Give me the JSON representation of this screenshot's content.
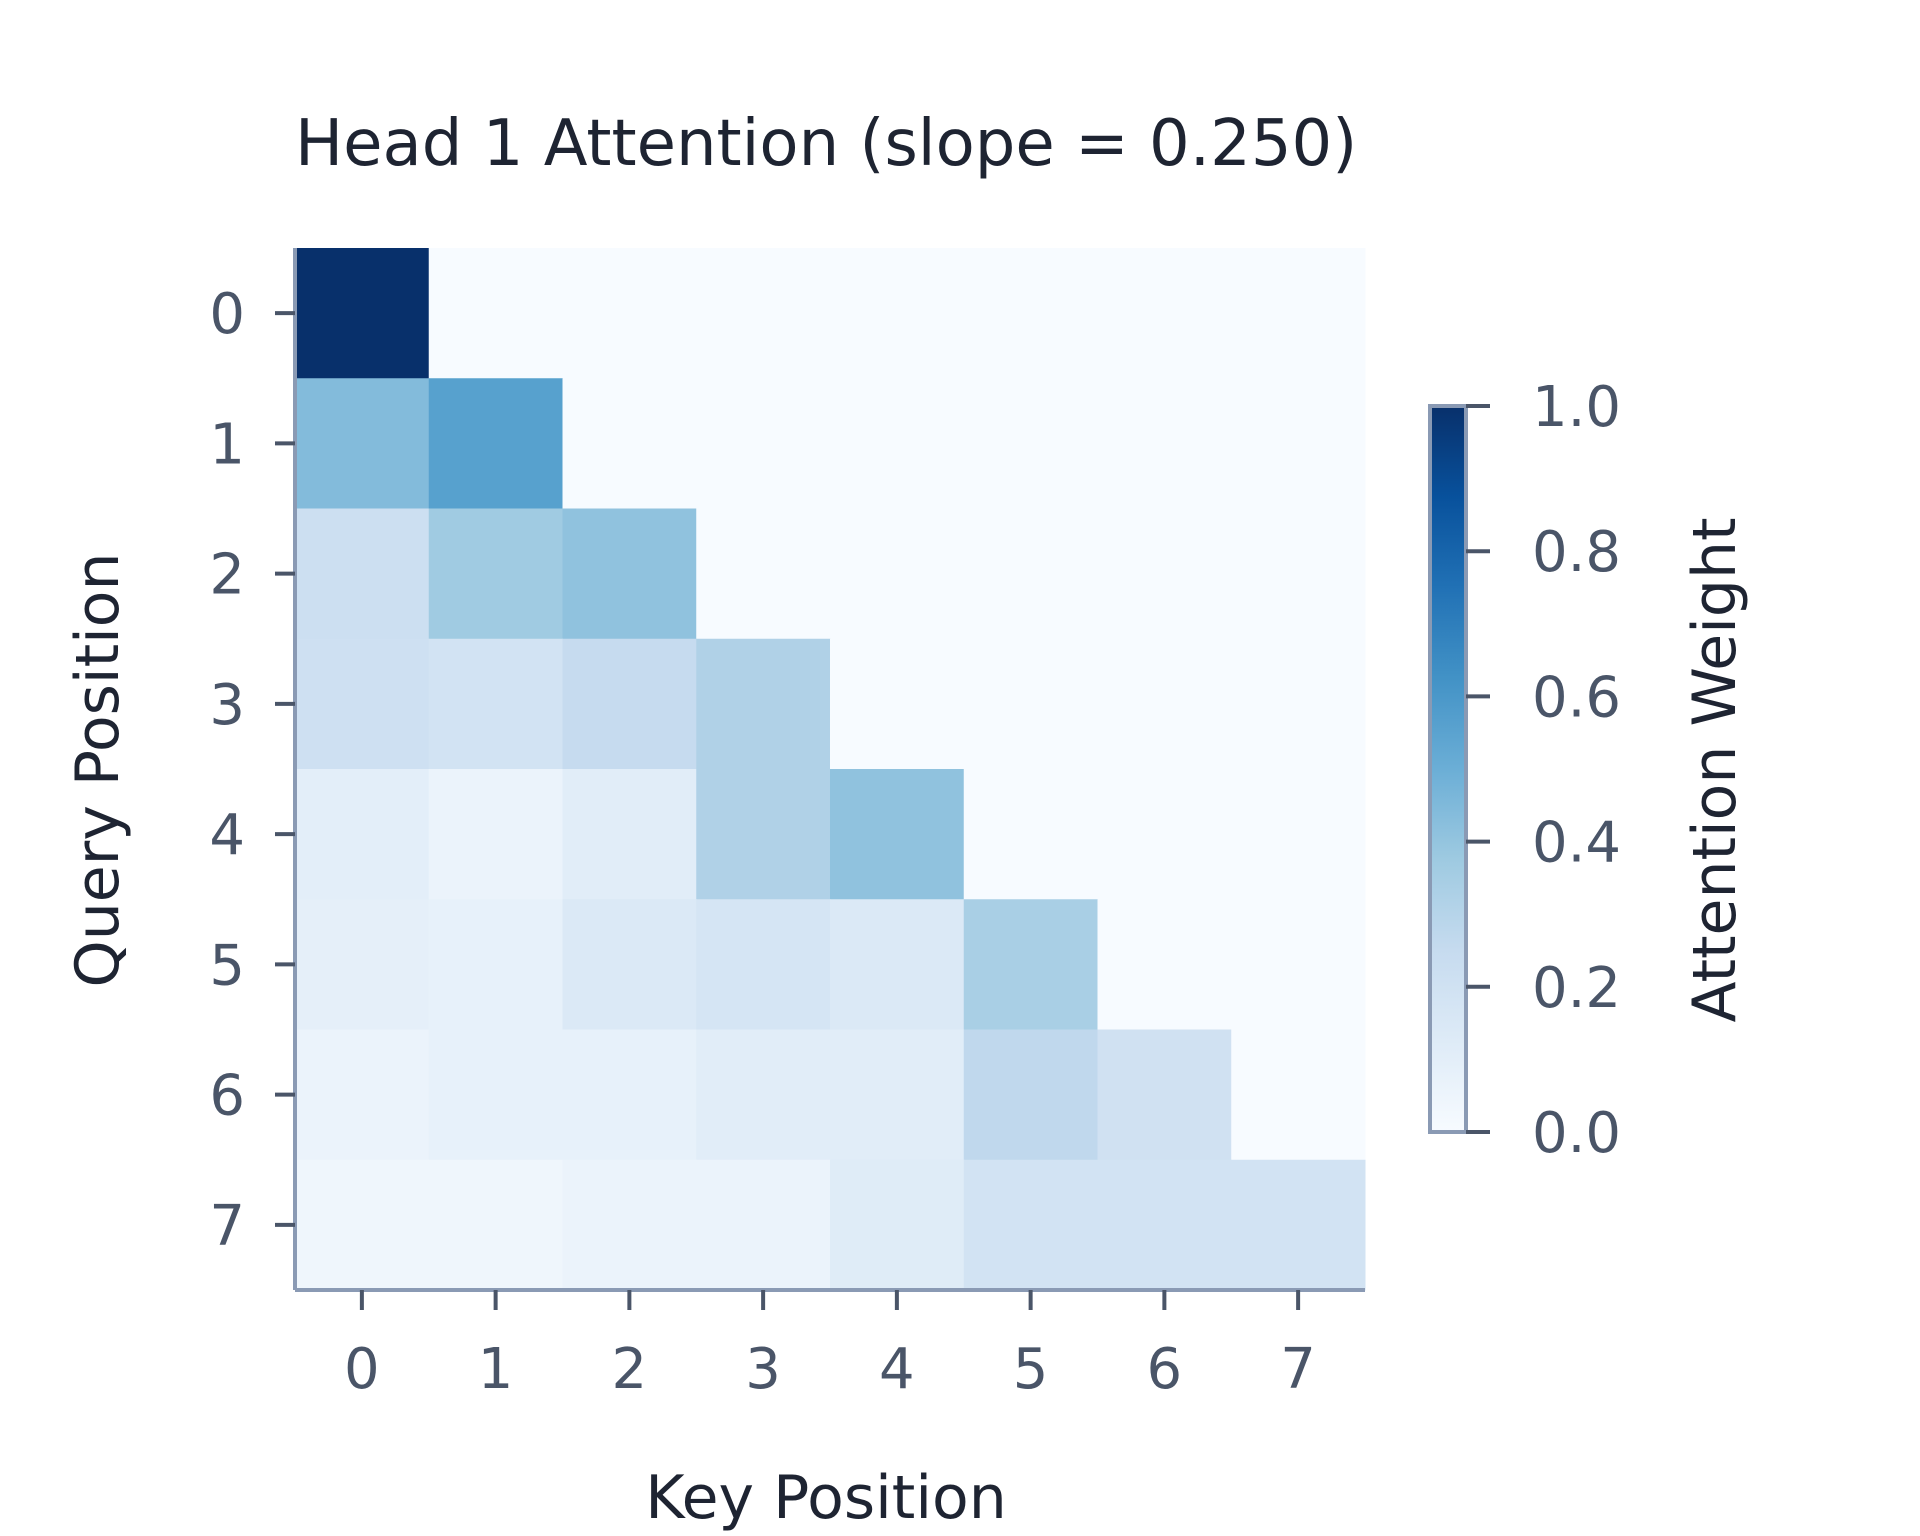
{
  "chart_data": {
    "type": "heatmap",
    "title": "Head 1 Attention (slope = 0.250)",
    "xlabel": "Key Position",
    "ylabel": "Query Position",
    "x_categories": [
      "0",
      "1",
      "2",
      "3",
      "4",
      "5",
      "6",
      "7"
    ],
    "y_categories": [
      "0",
      "1",
      "2",
      "3",
      "4",
      "5",
      "6",
      "7"
    ],
    "values": [
      [
        1.0,
        0.0,
        0.0,
        0.0,
        0.0,
        0.0,
        0.0,
        0.0
      ],
      [
        0.44,
        0.56,
        0.0,
        0.0,
        0.0,
        0.0,
        0.0,
        0.0
      ],
      [
        0.22,
        0.37,
        0.41,
        0.0,
        0.0,
        0.0,
        0.0,
        0.0
      ],
      [
        0.21,
        0.19,
        0.25,
        0.32,
        0.0,
        0.0,
        0.0,
        0.0
      ],
      [
        0.1,
        0.06,
        0.11,
        0.32,
        0.41,
        0.0,
        0.0,
        0.0
      ],
      [
        0.09,
        0.08,
        0.14,
        0.17,
        0.14,
        0.34,
        0.0,
        0.0
      ],
      [
        0.06,
        0.08,
        0.08,
        0.11,
        0.11,
        0.27,
        0.2,
        0.0
      ],
      [
        0.04,
        0.04,
        0.06,
        0.06,
        0.12,
        0.19,
        0.19,
        0.19
      ]
    ],
    "colormap": "Blues",
    "colormap_stops": [
      "#f7fbff",
      "#deebf7",
      "#c6dbef",
      "#9ecae1",
      "#6baed6",
      "#4292c6",
      "#2171b5",
      "#08519c",
      "#08306b"
    ],
    "colorbar": {
      "label": "Attention Weight",
      "range": [
        0,
        1
      ],
      "ticks": [
        "0.0",
        "0.2",
        "0.4",
        "0.6",
        "0.8",
        "1.0"
      ],
      "placement": "right"
    },
    "axis_color": "#8a9ab4",
    "text_color": "#1e2432",
    "tick_text_color": "#4a5568"
  }
}
